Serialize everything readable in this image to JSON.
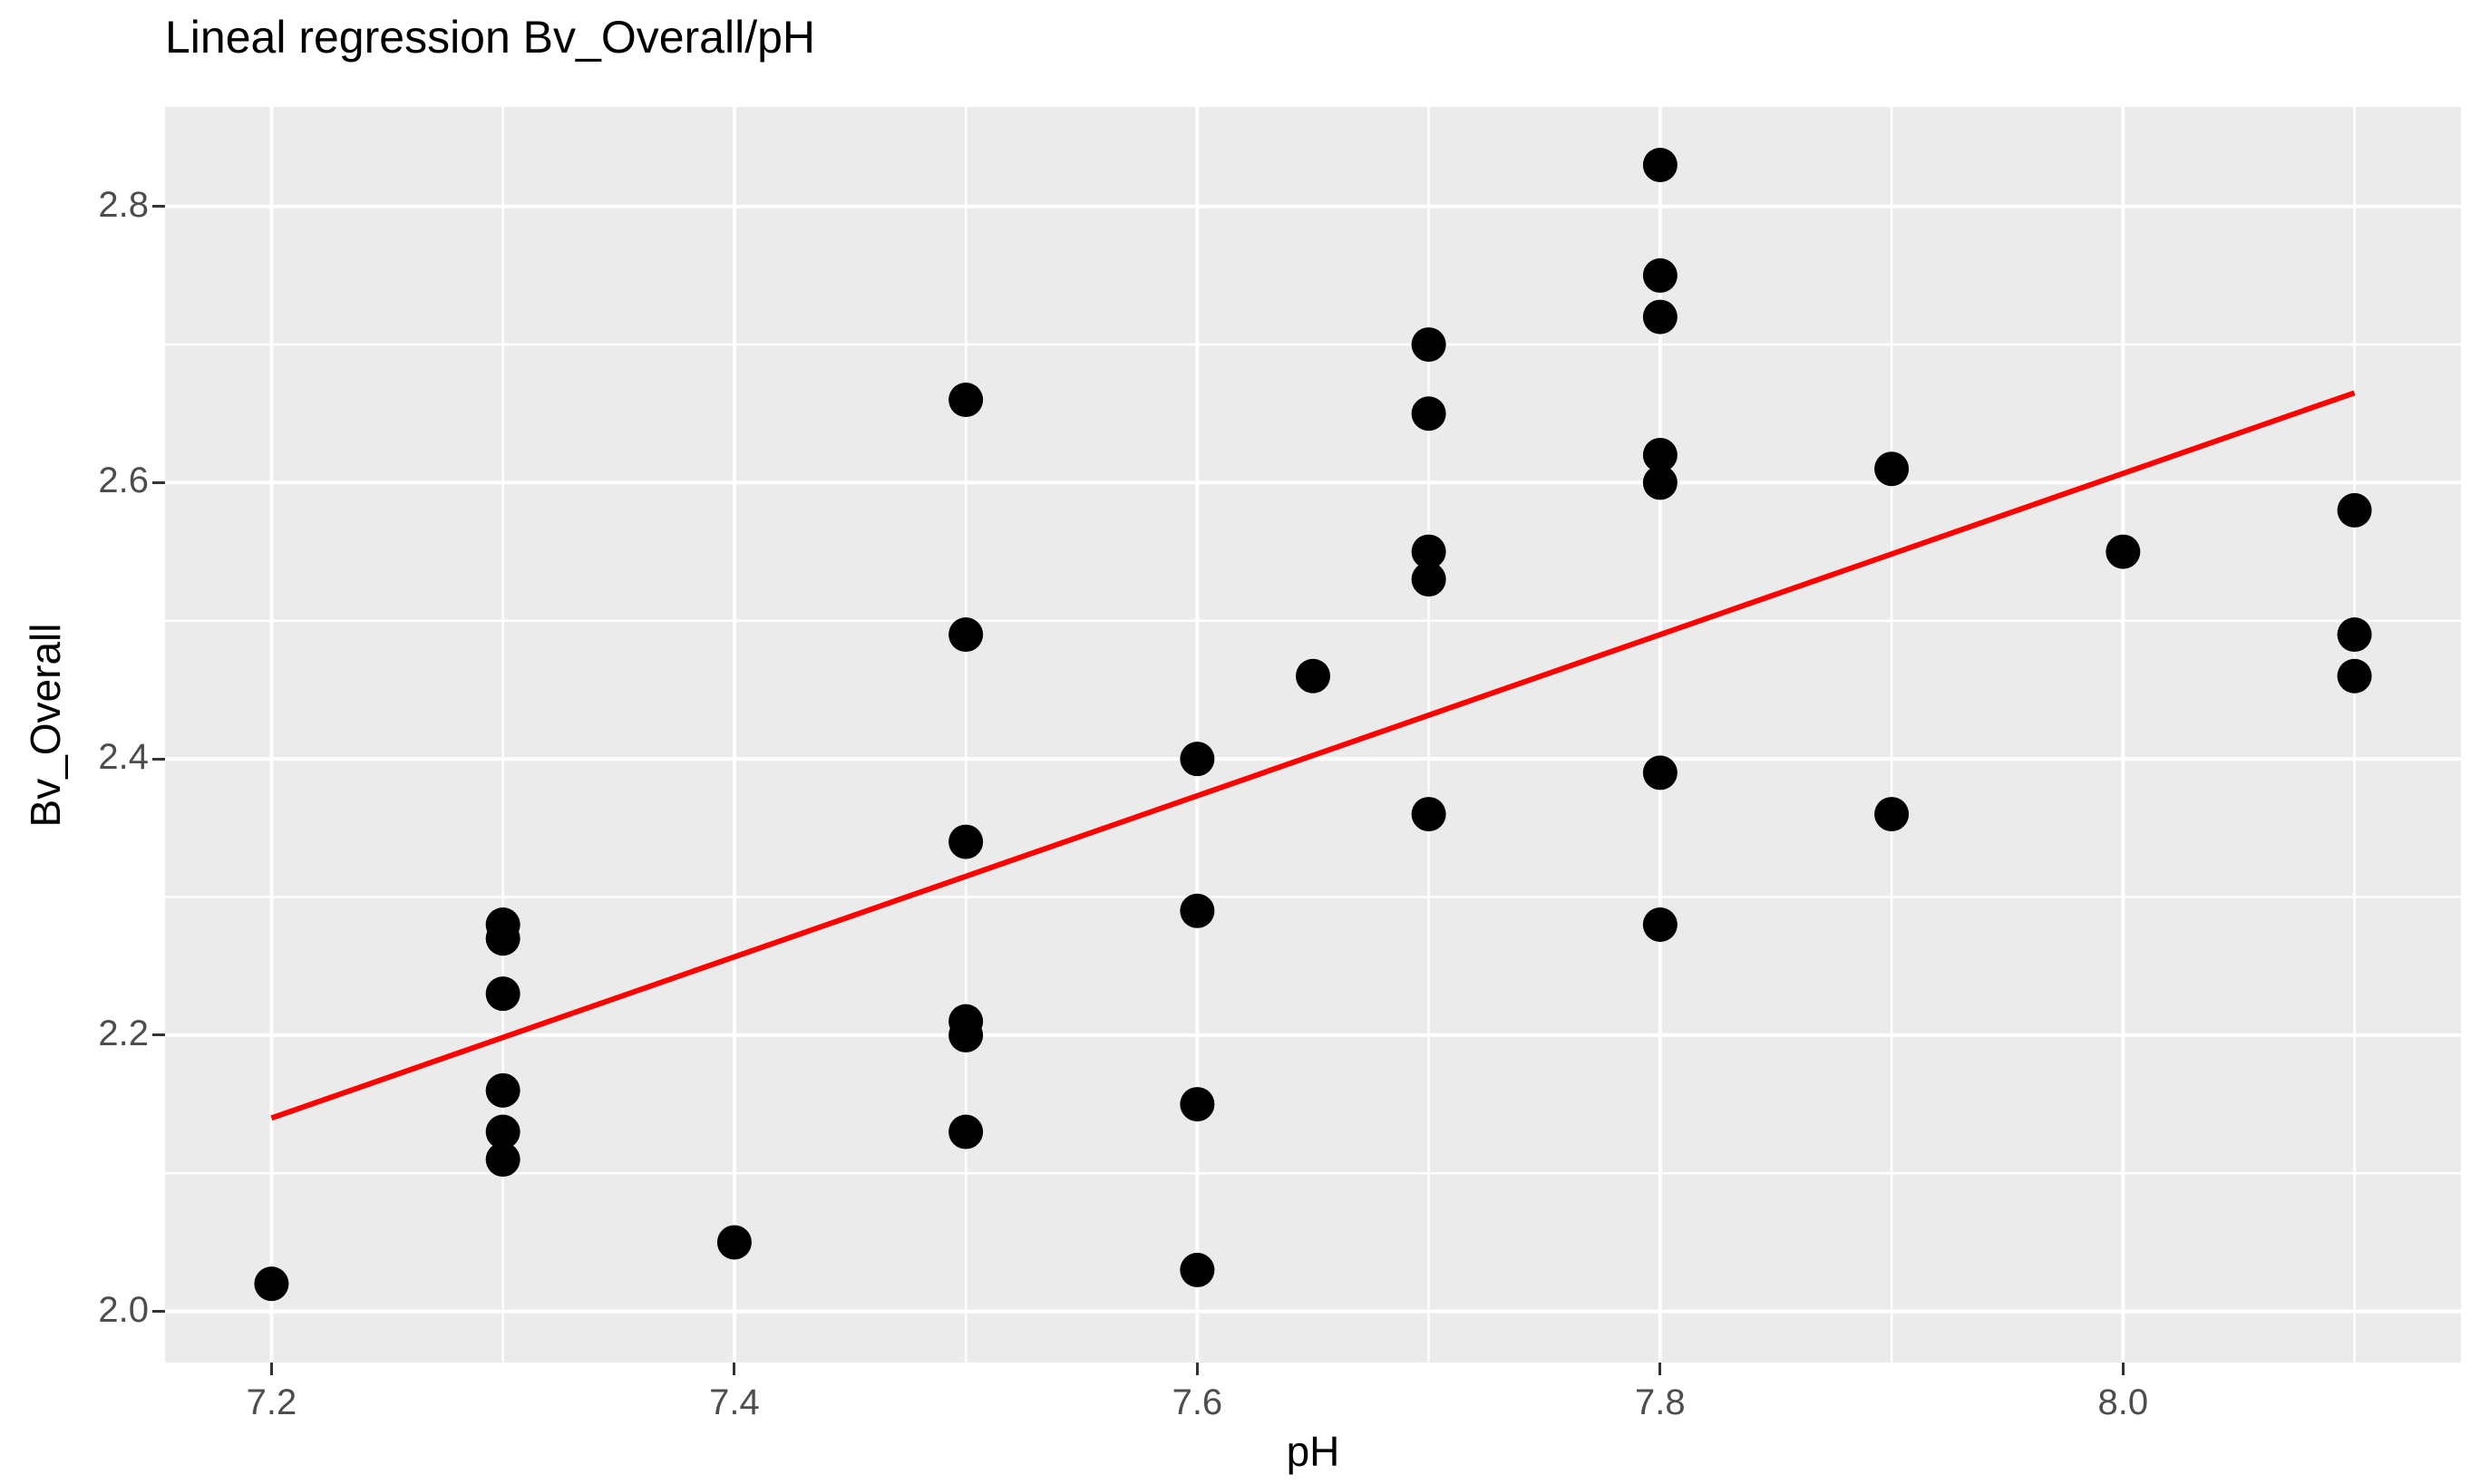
{
  "title": "Lineal regression Bv_Overall/pH",
  "chart_data": {
    "type": "scatter",
    "title": "Lineal regression Bv_Overall/pH",
    "xlabel": "pH",
    "ylabel": "Bv_Overall",
    "xlim": [
      7.154,
      8.146
    ],
    "ylim": [
      1.963,
      2.872
    ],
    "grid": true,
    "legend": "none",
    "x_major_ticks": [
      7.2,
      7.4,
      7.6,
      7.8,
      8.0
    ],
    "x_tick_labels": [
      "7.2",
      "7.4",
      "7.6",
      "7.8",
      "8.0"
    ],
    "x_minor_ticks": [
      7.3,
      7.5,
      7.7,
      7.9,
      8.1
    ],
    "y_major_ticks": [
      2.0,
      2.2,
      2.4,
      2.6,
      2.8
    ],
    "y_tick_labels": [
      "2.0",
      "2.2",
      "2.4",
      "2.6",
      "2.8"
    ],
    "y_minor_ticks": [
      2.1,
      2.3,
      2.5,
      2.7
    ],
    "points": [
      [
        7.2,
        2.02
      ],
      [
        7.3,
        2.28
      ],
      [
        7.3,
        2.27
      ],
      [
        7.3,
        2.23
      ],
      [
        7.3,
        2.16
      ],
      [
        7.3,
        2.13
      ],
      [
        7.3,
        2.11
      ],
      [
        7.4,
        2.05
      ],
      [
        7.5,
        2.66
      ],
      [
        7.5,
        2.49
      ],
      [
        7.5,
        2.34
      ],
      [
        7.5,
        2.21
      ],
      [
        7.5,
        2.2
      ],
      [
        7.5,
        2.13
      ],
      [
        7.6,
        2.4
      ],
      [
        7.6,
        2.29
      ],
      [
        7.6,
        2.15
      ],
      [
        7.6,
        2.03
      ],
      [
        7.65,
        2.46
      ],
      [
        7.7,
        2.7
      ],
      [
        7.7,
        2.65
      ],
      [
        7.7,
        2.55
      ],
      [
        7.7,
        2.53
      ],
      [
        7.7,
        2.36
      ],
      [
        7.8,
        2.83
      ],
      [
        7.8,
        2.75
      ],
      [
        7.8,
        2.72
      ],
      [
        7.8,
        2.62
      ],
      [
        7.8,
        2.6
      ],
      [
        7.8,
        2.39
      ],
      [
        7.8,
        2.28
      ],
      [
        7.9,
        2.61
      ],
      [
        7.9,
        2.36
      ],
      [
        8.0,
        2.55
      ],
      [
        8.1,
        2.58
      ],
      [
        8.1,
        2.49
      ],
      [
        8.1,
        2.46
      ]
    ],
    "regression_line": {
      "x": [
        7.2,
        8.1
      ],
      "y": [
        2.14,
        2.665
      ]
    },
    "colors": {
      "page_background": "#FFFFFF",
      "panel_background": "#EBEBEB",
      "gridline": "#FFFFFF",
      "point": "#000000",
      "regression_line": "#FF0000",
      "tick_text": "#4D4D4D",
      "tick_mark": "#333333",
      "title_text": "#000000"
    }
  }
}
